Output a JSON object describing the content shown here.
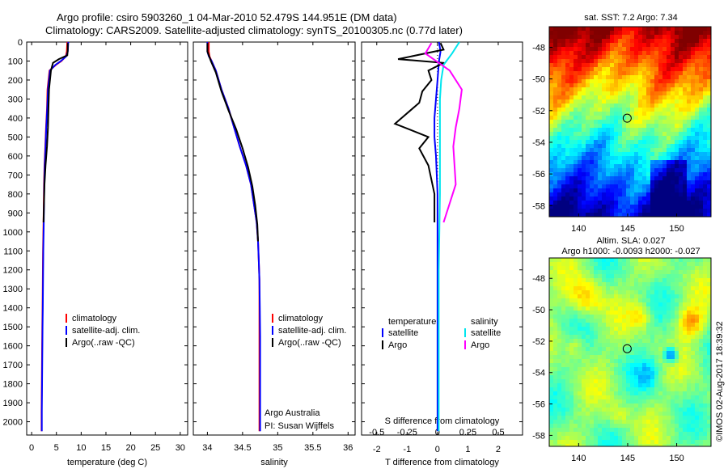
{
  "header": {
    "line1": "Argo profile: csiro 5903260_1 04-Mar-2010 52.479S 144.951E (DM data)",
    "line2": "Climatology: CARS2009. Satellite-adjusted climatology: synTS_20100305.nc (0.77d later)"
  },
  "credit": "©IMOS 02-Aug-2017 18:39:32",
  "colors": {
    "clim": "#ff0000",
    "sat": "#0000ff",
    "argo": "#000000",
    "sat_sal": "#00e5ee",
    "argo_sal": "#ff00ff"
  },
  "chart_data": [
    {
      "type": "line",
      "name": "temperature",
      "xlabel": "temperature (deg C)",
      "ylabel": "",
      "xlim": [
        -1,
        31.5
      ],
      "ylim": [
        2070,
        0
      ],
      "xticks": [
        0,
        5,
        10,
        15,
        20,
        25,
        30
      ],
      "yticks": [
        0,
        100,
        200,
        300,
        400,
        500,
        600,
        700,
        800,
        900,
        1000,
        1100,
        1200,
        1300,
        1400,
        1500,
        1600,
        1700,
        1800,
        1900,
        2000
      ],
      "legend": [
        "climatology",
        "satellite-adj. clim.",
        "Argo(..raw -QC)"
      ],
      "series": [
        {
          "name": "climatology",
          "color": "clim",
          "x": [
            7.2,
            7.1,
            6.9,
            6.0,
            4.9,
            3.6,
            3.2,
            3.1,
            2.9,
            2.75,
            2.6,
            2.5,
            2.45,
            2.4,
            2.3,
            2.25,
            2.2,
            2.15,
            2.1,
            2.05,
            2.0,
            2.0
          ],
          "y": [
            0,
            50,
            75,
            100,
            120,
            150,
            250,
            350,
            450,
            550,
            650,
            750,
            850,
            950,
            1100,
            1250,
            1400,
            1500,
            1650,
            1800,
            1950,
            2050
          ]
        },
        {
          "name": "satellite-adj. clim.",
          "color": "sat",
          "x": [
            7.4,
            7.3,
            7.0,
            5.9,
            4.8,
            3.7,
            3.3,
            3.15,
            2.95,
            2.8,
            2.65,
            2.55,
            2.5,
            2.45,
            2.35,
            2.3,
            2.25,
            2.2,
            2.15,
            2.1,
            2.05,
            2.05
          ],
          "y": [
            0,
            50,
            75,
            100,
            120,
            150,
            250,
            350,
            450,
            550,
            650,
            750,
            850,
            950,
            1100,
            1250,
            1400,
            1500,
            1650,
            1800,
            1950,
            2050
          ]
        },
        {
          "name": "Argo",
          "color": "argo",
          "x": [
            7.3,
            7.3,
            7.2,
            5.5,
            4.3,
            3.9,
            3.5,
            3.4,
            3.3,
            3.1,
            2.8,
            2.6,
            2.5,
            2.4
          ],
          "y": [
            5,
            40,
            70,
            90,
            110,
            150,
            250,
            350,
            450,
            550,
            650,
            750,
            850,
            950
          ]
        }
      ]
    },
    {
      "type": "line",
      "name": "salinity",
      "xlabel": "salinity",
      "ylabel": "",
      "xlim": [
        33.8,
        36.1
      ],
      "ylim": [
        2070,
        0
      ],
      "xticks": [
        34,
        34.5,
        35,
        35.5,
        36
      ],
      "legend": [
        "climatology",
        "satellite-adj. clim.",
        "Argo(..raw -QC)"
      ],
      "annotations": [
        "Argo Australia",
        "PI: Susan Wijffels"
      ],
      "series": [
        {
          "name": "climatology",
          "color": "clim",
          "x": [
            34.02,
            34.02,
            34.03,
            34.06,
            34.12,
            34.2,
            34.3,
            34.38,
            34.46,
            34.55,
            34.62,
            34.66,
            34.7,
            34.72,
            34.73,
            34.74,
            34.74,
            34.74,
            34.74,
            34.74,
            34.74,
            34.74
          ],
          "y": [
            0,
            50,
            75,
            100,
            150,
            250,
            350,
            450,
            550,
            650,
            750,
            850,
            950,
            1050,
            1150,
            1250,
            1400,
            1550,
            1700,
            1850,
            2000,
            2050
          ]
        },
        {
          "name": "satellite-adj. clim.",
          "color": "sat",
          "x": [
            34.0,
            34.0,
            34.02,
            34.06,
            34.12,
            34.2,
            34.3,
            34.38,
            34.46,
            34.55,
            34.62,
            34.66,
            34.7,
            34.72,
            34.73,
            34.74,
            34.745,
            34.75,
            34.75,
            34.75,
            34.75,
            34.75
          ],
          "y": [
            0,
            50,
            75,
            100,
            150,
            250,
            350,
            450,
            550,
            650,
            750,
            850,
            950,
            1050,
            1150,
            1250,
            1400,
            1550,
            1700,
            1850,
            2000,
            2050
          ]
        },
        {
          "name": "Argo",
          "color": "argo",
          "x": [
            34.0,
            34.0,
            34.05,
            34.12,
            34.2,
            34.3,
            34.41,
            34.5,
            34.58,
            34.64,
            34.68,
            34.71,
            34.72
          ],
          "y": [
            5,
            50,
            100,
            160,
            260,
            360,
            460,
            560,
            660,
            760,
            860,
            960,
            1050
          ]
        }
      ]
    },
    {
      "type": "line",
      "name": "difference",
      "xlabel": "T difference from climatology",
      "xlabel2": "S difference from climatology",
      "xlim": [
        -2.5,
        2.8
      ],
      "ylim": [
        2070,
        0
      ],
      "xticks": [
        -2,
        -1,
        0,
        1,
        2
      ],
      "xticks_s": [
        -0.5,
        -0.25,
        0,
        0.25,
        0.5
      ],
      "legend_left_title": "temperature",
      "legend_right_title": "salinity",
      "legend_left": [
        "satellite",
        "Argo"
      ],
      "legend_right": [
        "satellite",
        "Argo"
      ],
      "series": [
        {
          "name": "T satellite",
          "color": "sat",
          "x": [
            0.05,
            0.1,
            0.05,
            0.0,
            -0.05,
            -0.1,
            -0.1,
            -0.05,
            0.0,
            0.0,
            0.0,
            0.0,
            0.0
          ],
          "y": [
            0,
            50,
            100,
            200,
            300,
            400,
            500,
            600,
            800,
            1000,
            1400,
            1800,
            2050
          ]
        },
        {
          "name": "T Argo",
          "color": "argo",
          "x": [
            0.1,
            0.2,
            -1.3,
            0.2,
            -0.3,
            -0.2,
            -0.5,
            -0.6,
            -1.4,
            -0.3,
            -0.6,
            -0.3,
            -0.1,
            -0.1
          ],
          "y": [
            5,
            40,
            90,
            110,
            150,
            200,
            260,
            320,
            430,
            500,
            560,
            650,
            800,
            950
          ]
        },
        {
          "name": "S satellite",
          "color": "sat_sal",
          "x": [
            0.18,
            0.12,
            0.05,
            0.03,
            0.02,
            0.02,
            0.02,
            0.02,
            0.01,
            0.01,
            0.01
          ],
          "y": [
            0,
            60,
            120,
            200,
            300,
            400,
            600,
            800,
            1200,
            1600,
            2050
          ]
        },
        {
          "name": "S Argo",
          "color": "argo_sal",
          "x": [
            -0.05,
            -0.1,
            0.1,
            0.2,
            0.18,
            0.15,
            0.13,
            0.14,
            0.15,
            0.1,
            0.05
          ],
          "y": [
            5,
            60,
            150,
            250,
            350,
            450,
            550,
            650,
            750,
            850,
            950
          ]
        }
      ]
    },
    {
      "type": "heatmap",
      "name": "sst-map",
      "title": "sat. SST: 7.2 Argo: 7.34",
      "xlim": [
        137,
        153.5
      ],
      "ylim": [
        -58.7,
        -46.7
      ],
      "xticks": [
        140,
        145,
        150
      ],
      "yticks": [
        -48,
        -50,
        -52,
        -54,
        -56,
        -58
      ],
      "marker": {
        "lon": 144.951,
        "lat": -52.479
      }
    },
    {
      "type": "heatmap",
      "name": "sla-map",
      "title": "Altim. SLA: 0.027",
      "subtitle": "Argo h1000: -0.0093 h2000: -0.027",
      "xlim": [
        137,
        153.5
      ],
      "ylim": [
        -58.7,
        -46.7
      ],
      "xticks": [
        140,
        145,
        150
      ],
      "yticks": [
        -48,
        -50,
        -52,
        -54,
        -56,
        -58
      ],
      "marker": {
        "lon": 144.951,
        "lat": -52.479
      }
    }
  ]
}
